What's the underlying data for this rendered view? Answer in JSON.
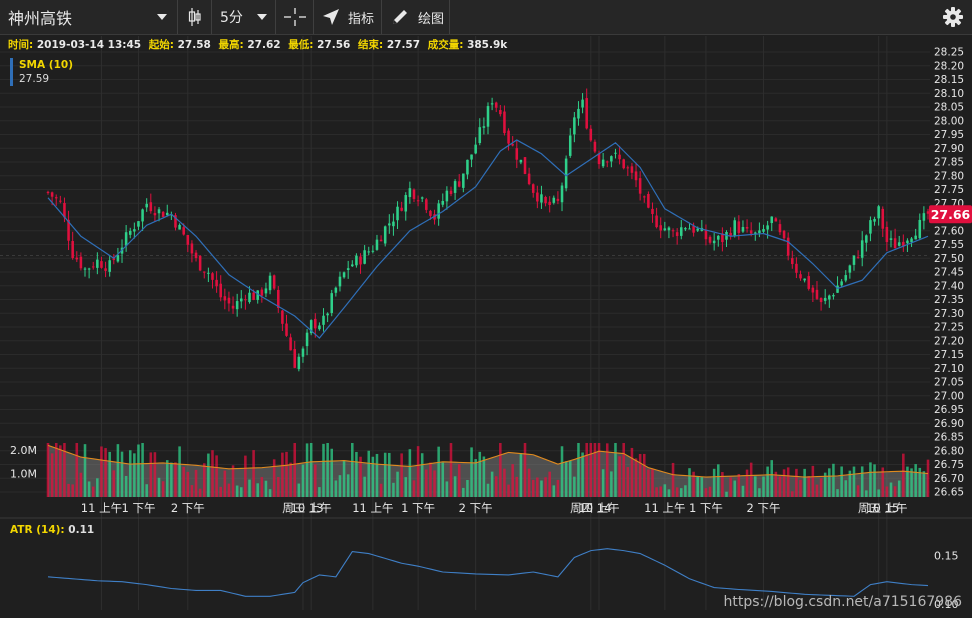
{
  "toolbar": {
    "symbol": "神州高铁",
    "interval": "5分",
    "indicators_label": "指标",
    "draw_label": "绘图"
  },
  "infobar": {
    "time_label": "时间:",
    "time": "2019-03-14 13:45",
    "open_label": "起始:",
    "open": "27.58",
    "high_label": "最高:",
    "high": "27.62",
    "low_label": "最低:",
    "low": "27.56",
    "close_label": "结束:",
    "close": "27.57",
    "volume_label": "成交量:",
    "volume": "385.9k"
  },
  "sma_legend": {
    "name": "SMA (10)",
    "value": "27.59"
  },
  "atr_legend": {
    "name": "ATR (14):",
    "value": "0.11"
  },
  "watermark": "https://blog.csdn.net/a715167986",
  "colors": {
    "up": "#2fd08a",
    "down": "#e0103e",
    "sma": "#2f6fb8",
    "volume_sma": "#e08a1e",
    "atr": "#3f7fc6",
    "last_price_bg": "#e0103e",
    "label": "#f2d600"
  },
  "chart_data": {
    "type": "candlestick",
    "last_price": "27.66",
    "price_axis": {
      "min": 26.65,
      "max": 28.25,
      "ticks": [
        "28.25",
        "28.20",
        "28.15",
        "28.10",
        "28.05",
        "28.00",
        "27.95",
        "27.90",
        "27.85",
        "27.80",
        "27.75",
        "27.70",
        "27.65",
        "27.60",
        "27.55",
        "27.50",
        "27.45",
        "27.40",
        "27.35",
        "27.30",
        "27.25",
        "27.20",
        "27.15",
        "27.10",
        "27.05",
        "27.00",
        "26.95",
        "26.90",
        "26.85",
        "26.80",
        "26.75",
        "26.70",
        "26.65"
      ]
    },
    "volume_axis": {
      "ticks": [
        "2.0M",
        "1.0M"
      ],
      "tick_values": [
        2000000,
        1000000
      ],
      "max": 2300000
    },
    "atr_axis": {
      "ticks": [
        "0.15",
        "0.10"
      ],
      "tick_values": [
        0.15,
        0.1
      ],
      "range": [
        0.098,
        0.168
      ]
    },
    "time_axis": [
      "11 上午",
      "1 下午",
      "2 下午",
      "周三 13",
      "10 上午",
      "11 上午",
      "1 下午",
      "2 下午",
      "周四 14",
      "10 上午",
      "11 上午",
      "1 下午",
      "2 下午",
      "周五 15",
      "10 上午"
    ],
    "time_axis_bars": [
      13,
      22,
      34,
      62,
      64,
      79,
      90,
      104,
      132,
      134,
      150,
      160,
      174,
      202,
      204
    ],
    "guide_price": 27.51,
    "price_anchors": [
      [
        0,
        27.74
      ],
      [
        3,
        27.7
      ],
      [
        6,
        27.52
      ],
      [
        9,
        27.46
      ],
      [
        12,
        27.49
      ],
      [
        15,
        27.47
      ],
      [
        18,
        27.55
      ],
      [
        21,
        27.62
      ],
      [
        24,
        27.7
      ],
      [
        27,
        27.67
      ],
      [
        30,
        27.66
      ],
      [
        33,
        27.58
      ],
      [
        36,
        27.49
      ],
      [
        39,
        27.45
      ],
      [
        42,
        27.36
      ],
      [
        45,
        27.32
      ],
      [
        48,
        27.37
      ],
      [
        51,
        27.36
      ],
      [
        54,
        27.42
      ],
      [
        57,
        27.27
      ],
      [
        60,
        27.12
      ],
      [
        62,
        27.16
      ],
      [
        64,
        27.26
      ],
      [
        67,
        27.27
      ],
      [
        70,
        27.39
      ],
      [
        73,
        27.47
      ],
      [
        76,
        27.5
      ],
      [
        79,
        27.54
      ],
      [
        82,
        27.61
      ],
      [
        85,
        27.67
      ],
      [
        88,
        27.75
      ],
      [
        91,
        27.72
      ],
      [
        94,
        27.65
      ],
      [
        97,
        27.74
      ],
      [
        100,
        27.78
      ],
      [
        103,
        27.88
      ],
      [
        106,
        27.99
      ],
      [
        108,
        28.08
      ],
      [
        110,
        28.03
      ],
      [
        112,
        27.93
      ],
      [
        115,
        27.85
      ],
      [
        118,
        27.75
      ],
      [
        121,
        27.69
      ],
      [
        124,
        27.7
      ],
      [
        126,
        27.84
      ],
      [
        128,
        28.02
      ],
      [
        130,
        28.06
      ],
      [
        132,
        27.93
      ],
      [
        134,
        27.86
      ],
      [
        137,
        27.88
      ],
      [
        140,
        27.84
      ],
      [
        143,
        27.78
      ],
      [
        146,
        27.66
      ],
      [
        149,
        27.62
      ],
      [
        152,
        27.59
      ],
      [
        155,
        27.62
      ],
      [
        158,
        27.6
      ],
      [
        161,
        27.56
      ],
      [
        164,
        27.57
      ],
      [
        167,
        27.62
      ],
      [
        170,
        27.59
      ],
      [
        173,
        27.58
      ],
      [
        176,
        27.64
      ],
      [
        179,
        27.55
      ],
      [
        182,
        27.46
      ],
      [
        185,
        27.4
      ],
      [
        188,
        27.33
      ],
      [
        191,
        27.38
      ],
      [
        194,
        27.44
      ],
      [
        197,
        27.52
      ],
      [
        200,
        27.62
      ],
      [
        202,
        27.67
      ],
      [
        204,
        27.56
      ],
      [
        206,
        27.55
      ],
      [
        209,
        27.58
      ],
      [
        212,
        27.62
      ],
      [
        214,
        27.66
      ]
    ],
    "sma_anchors": [
      [
        0,
        27.72
      ],
      [
        8,
        27.58
      ],
      [
        16,
        27.5
      ],
      [
        24,
        27.62
      ],
      [
        30,
        27.66
      ],
      [
        36,
        27.58
      ],
      [
        44,
        27.44
      ],
      [
        52,
        27.36
      ],
      [
        60,
        27.29
      ],
      [
        66,
        27.21
      ],
      [
        72,
        27.32
      ],
      [
        80,
        27.47
      ],
      [
        88,
        27.6
      ],
      [
        96,
        27.67
      ],
      [
        104,
        27.76
      ],
      [
        110,
        27.89
      ],
      [
        114,
        27.93
      ],
      [
        120,
        27.88
      ],
      [
        126,
        27.8
      ],
      [
        132,
        27.86
      ],
      [
        138,
        27.92
      ],
      [
        144,
        27.83
      ],
      [
        150,
        27.68
      ],
      [
        158,
        27.61
      ],
      [
        166,
        27.58
      ],
      [
        174,
        27.59
      ],
      [
        180,
        27.56
      ],
      [
        186,
        27.48
      ],
      [
        192,
        27.39
      ],
      [
        198,
        27.42
      ],
      [
        204,
        27.52
      ],
      [
        214,
        27.58
      ]
    ],
    "volume_sma_anchors": [
      [
        0,
        2200000
      ],
      [
        8,
        1700000
      ],
      [
        14,
        1550000
      ],
      [
        20,
        1400000
      ],
      [
        28,
        1450000
      ],
      [
        36,
        1350000
      ],
      [
        44,
        1200000
      ],
      [
        52,
        1250000
      ],
      [
        58,
        1350000
      ],
      [
        64,
        1500000
      ],
      [
        72,
        1550000
      ],
      [
        80,
        1400000
      ],
      [
        88,
        1300000
      ],
      [
        96,
        1500000
      ],
      [
        104,
        1450000
      ],
      [
        112,
        1900000
      ],
      [
        118,
        1800000
      ],
      [
        124,
        1400000
      ],
      [
        128,
        1600000
      ],
      [
        134,
        1950000
      ],
      [
        140,
        1850000
      ],
      [
        146,
        1250000
      ],
      [
        152,
        950000
      ],
      [
        160,
        850000
      ],
      [
        168,
        900000
      ],
      [
        176,
        950000
      ],
      [
        184,
        850000
      ],
      [
        192,
        900000
      ],
      [
        200,
        1050000
      ],
      [
        208,
        1100000
      ],
      [
        214,
        1000000
      ]
    ],
    "atr_anchors": [
      [
        0,
        0.128
      ],
      [
        6,
        0.126
      ],
      [
        12,
        0.124
      ],
      [
        18,
        0.123
      ],
      [
        24,
        0.12
      ],
      [
        30,
        0.116
      ],
      [
        36,
        0.114
      ],
      [
        42,
        0.114
      ],
      [
        48,
        0.108
      ],
      [
        54,
        0.108
      ],
      [
        60,
        0.112
      ],
      [
        62,
        0.122
      ],
      [
        66,
        0.13
      ],
      [
        70,
        0.128
      ],
      [
        74,
        0.154
      ],
      [
        78,
        0.152
      ],
      [
        82,
        0.147
      ],
      [
        86,
        0.142
      ],
      [
        90,
        0.139
      ],
      [
        96,
        0.133
      ],
      [
        104,
        0.131
      ],
      [
        112,
        0.13
      ],
      [
        118,
        0.133
      ],
      [
        124,
        0.128
      ],
      [
        128,
        0.148
      ],
      [
        132,
        0.155
      ],
      [
        136,
        0.157
      ],
      [
        140,
        0.155
      ],
      [
        144,
        0.152
      ],
      [
        150,
        0.14
      ],
      [
        156,
        0.126
      ],
      [
        162,
        0.117
      ],
      [
        168,
        0.115
      ],
      [
        176,
        0.113
      ],
      [
        184,
        0.11
      ],
      [
        190,
        0.109
      ],
      [
        196,
        0.108
      ],
      [
        200,
        0.12
      ],
      [
        204,
        0.123
      ],
      [
        210,
        0.12
      ],
      [
        214,
        0.119
      ]
    ]
  }
}
